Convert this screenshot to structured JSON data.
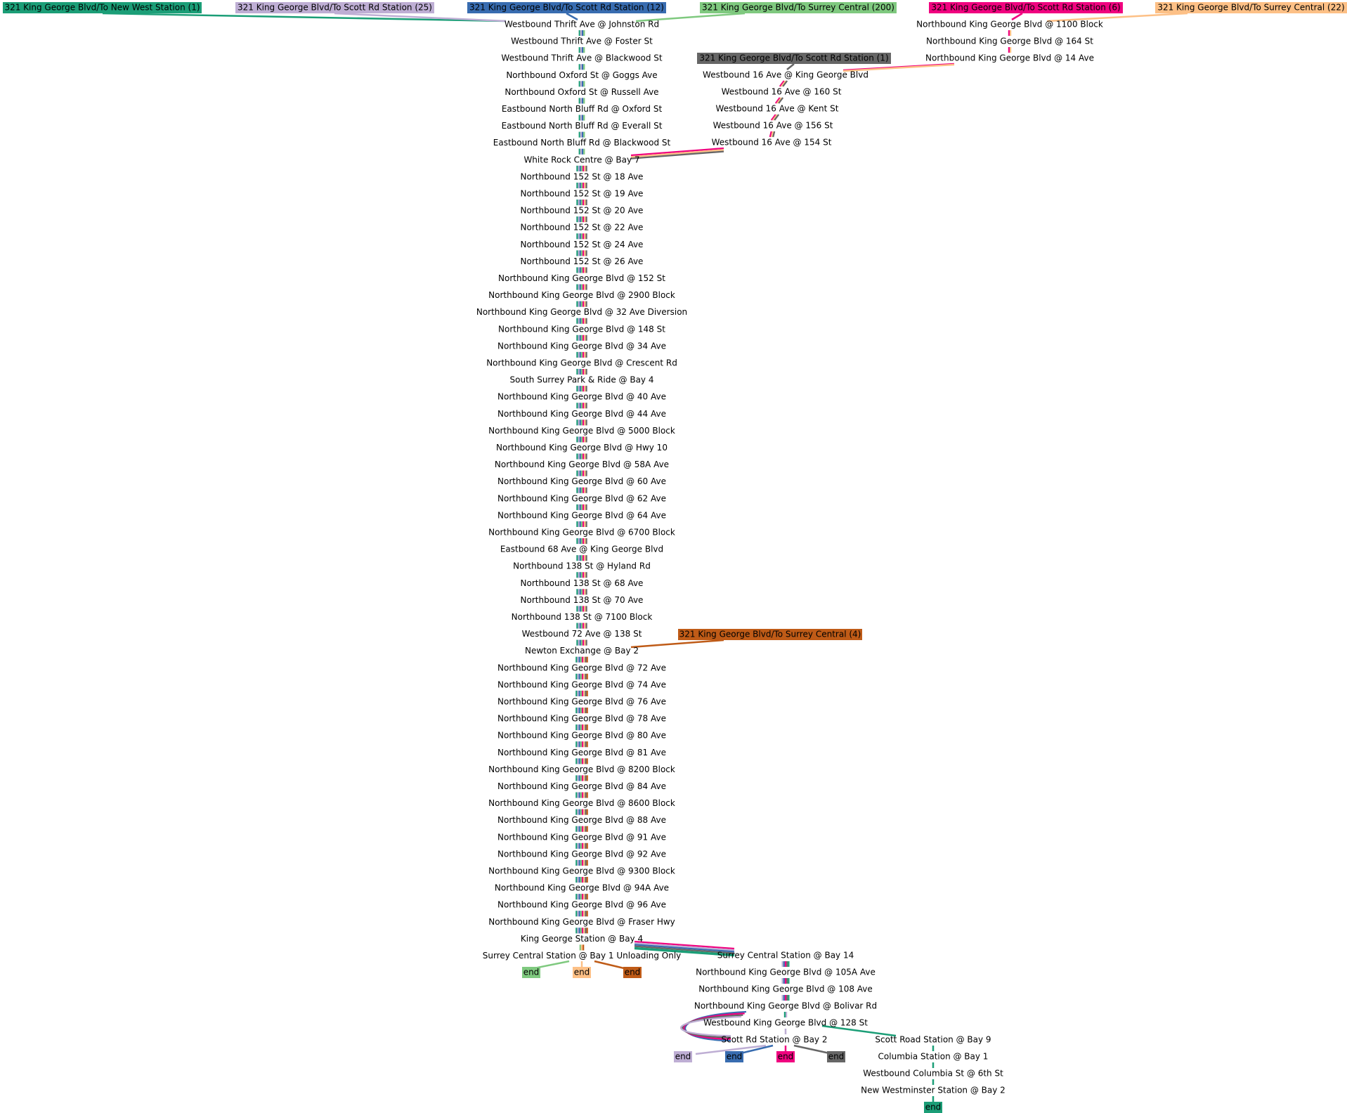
{
  "palette": {
    "route_new_west_1": "#1b9e77",
    "route_scott_25": "#beaed4",
    "route_scott_12": "#386cb0",
    "route_surrey_200": "#7fc97f",
    "route_scott_6": "#f0027f",
    "route_surrey_22": "#fdc086",
    "route_scott_1": "#666666",
    "route_surrey_4": "#bf5b17"
  },
  "routes": [
    {
      "id": "route_new_west_1",
      "label": "321 King George Blvd/To New West Station (1)"
    },
    {
      "id": "route_scott_25",
      "label": "321 King George Blvd/To Scott Rd Station (25)"
    },
    {
      "id": "route_scott_12",
      "label": "321 King George Blvd/To Scott Rd Station (12)"
    },
    {
      "id": "route_surrey_200",
      "label": "321 King George Blvd/To Surrey Central (200)"
    },
    {
      "id": "route_scott_6",
      "label": "321 King George Blvd/To Scott Rd Station (6)"
    },
    {
      "id": "route_surrey_22",
      "label": "321 King George Blvd/To Surrey Central (22)"
    },
    {
      "id": "route_scott_1",
      "label": "321 King George Blvd/To Scott Rd Station (1)"
    },
    {
      "id": "route_surrey_4",
      "label": "321 King George Blvd/To Surrey Central (4)"
    }
  ],
  "main_stops": [
    "Westbound Thrift Ave @ Johnston Rd",
    "Westbound Thrift Ave @ Foster St",
    "Westbound Thrift Ave @ Blackwood St",
    "Northbound Oxford St @ Goggs Ave",
    "Northbound Oxford St @ Russell Ave",
    "Eastbound North Bluff Rd @ Oxford St",
    "Eastbound North Bluff Rd @ Everall St",
    "Eastbound North Bluff Rd @ Blackwood St",
    "White Rock Centre @ Bay 7",
    "Northbound 152 St @ 18 Ave",
    "Northbound 152 St @ 19 Ave",
    "Northbound 152 St @ 20 Ave",
    "Northbound 152 St @ 22 Ave",
    "Northbound 152 St @ 24 Ave",
    "Northbound 152 St @ 26 Ave",
    "Northbound King George Blvd @ 152 St",
    "Northbound King George Blvd @ 2900 Block",
    "Northbound King George Blvd @ 32 Ave Diversion",
    "Northbound King George Blvd @ 148 St",
    "Northbound King George Blvd @ 34 Ave",
    "Northbound King George Blvd @ Crescent Rd",
    "South Surrey Park & Ride @ Bay 4",
    "Northbound King George Blvd @ 40 Ave",
    "Northbound King George Blvd @ 44 Ave",
    "Northbound King George Blvd @ 5000 Block",
    "Northbound King George Blvd @ Hwy 10",
    "Northbound King George Blvd @ 58A Ave",
    "Northbound King George Blvd @ 60 Ave",
    "Northbound King George Blvd @ 62 Ave",
    "Northbound King George Blvd @ 64 Ave",
    "Northbound King George Blvd @ 6700 Block",
    "Eastbound 68 Ave @ King George Blvd",
    "Northbound 138 St @ Hyland Rd",
    "Northbound 138 St @ 68 Ave",
    "Northbound 138 St @ 70 Ave",
    "Northbound 138 St @ 7100 Block",
    "Westbound 72 Ave @ 138 St",
    "Newton Exchange @ Bay 2",
    "Northbound King George Blvd @ 72 Ave",
    "Northbound King George Blvd @ 74 Ave",
    "Northbound King George Blvd @ 76 Ave",
    "Northbound King George Blvd @ 78 Ave",
    "Northbound King George Blvd @ 80 Ave",
    "Northbound King George Blvd @ 81 Ave",
    "Northbound King George Blvd @ 8200 Block",
    "Northbound King George Blvd @ 84 Ave",
    "Northbound King George Blvd @ 8600 Block",
    "Northbound King George Blvd @ 88 Ave",
    "Northbound King George Blvd @ 91 Ave",
    "Northbound King George Blvd @ 92 Ave",
    "Northbound King George Blvd @ 9300 Block",
    "Northbound King George Blvd @ 94A Ave",
    "Northbound King George Blvd @ 96 Ave",
    "Northbound King George Blvd @ Fraser Hwy",
    "King George Station @ Bay 4",
    "Surrey Central Station @ Bay 1 Unloading Only"
  ],
  "branch_1100_stops": [
    "Northbound King George Blvd @ 1100 Block",
    "Northbound King George Blvd @ 164 St",
    "Northbound King George Blvd @ 14 Ave"
  ],
  "branch_16ave_stops": [
    "Westbound 16 Ave @ King George Blvd",
    "Westbound 16 Ave @ 160 St",
    "Westbound 16 Ave @ Kent St",
    "Westbound 16 Ave @ 156 St",
    "Westbound 16 Ave @ 154 St"
  ],
  "north_stops": [
    "Surrey Central Station @ Bay 14",
    "Northbound King George Blvd @ 105A Ave",
    "Northbound King George Blvd @ 108 Ave",
    "Northbound King George Blvd @ Bolivar Rd",
    "Westbound King George Blvd @ 128 St",
    "Scott Rd Station @ Bay 2"
  ],
  "newwest_stops": [
    "Scott Road Station @ Bay 9",
    "Columbia Station @ Bay 1",
    "Westbound Columbia St @ 6th St",
    "New Westminster Station @ Bay 2"
  ],
  "end_label": "end"
}
